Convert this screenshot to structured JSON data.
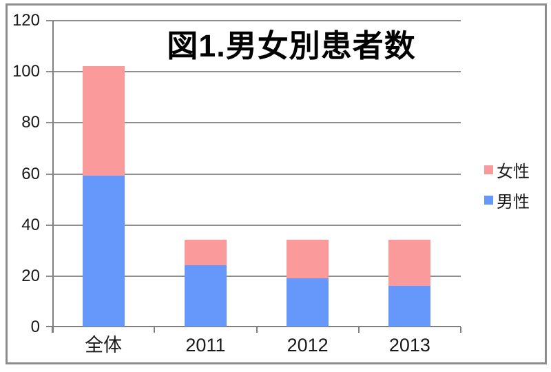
{
  "chart_data": {
    "type": "bar",
    "stacked": true,
    "title": "図1.男女別患者数",
    "categories": [
      "全体",
      "2011",
      "2012",
      "2013"
    ],
    "series": [
      {
        "id": "male",
        "name": "男性",
        "color": "#6598FA",
        "values": [
          59,
          24,
          19,
          16
        ]
      },
      {
        "id": "female",
        "name": "女性",
        "color": "#FB9A9A",
        "values": [
          43,
          10,
          15,
          18
        ]
      }
    ],
    "stack_totals": [
      102,
      34,
      34,
      34
    ],
    "xlabel": "",
    "ylabel": "",
    "ylim": [
      0,
      120
    ],
    "y_ticks": [
      0,
      20,
      40,
      60,
      80,
      100,
      120
    ],
    "grid": true,
    "legend_position": "right",
    "legend_order": [
      "女性",
      "男性"
    ]
  },
  "colors": {
    "female": "#FB9A9A",
    "male": "#6598FA",
    "gridline": "#8e8e8e",
    "axis": "#7f7f7f",
    "frame_border": "#8c8c8c",
    "background": "#ffffff",
    "text": "#1a1a1a"
  }
}
